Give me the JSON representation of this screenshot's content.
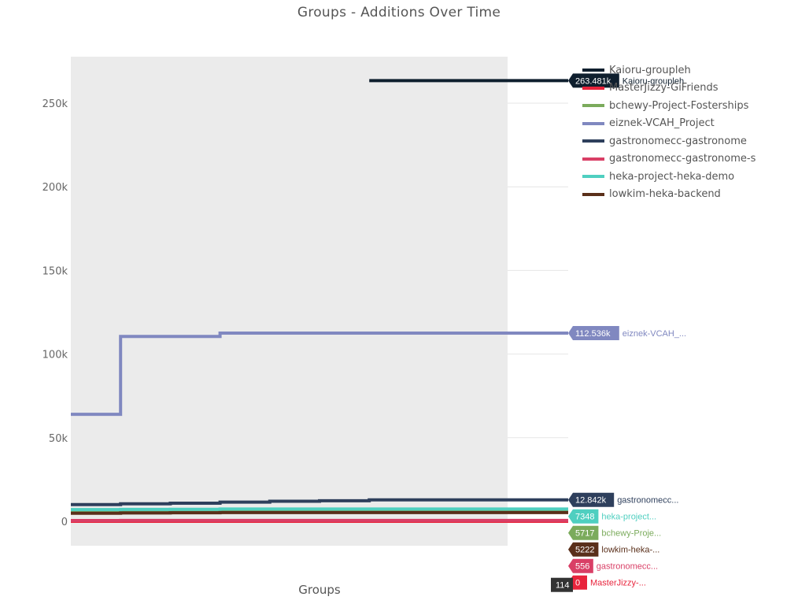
{
  "chart_data": {
    "type": "line",
    "title": "Groups - Additions Over Time",
    "xlabel": "Groups",
    "ylabel": "",
    "ylim": [
      0,
      270000
    ],
    "yticks": [
      0,
      50000,
      100000,
      150000,
      200000,
      250000
    ],
    "ytick_labels": [
      "0",
      "50k",
      "100k",
      "150k",
      "200k",
      "250k"
    ],
    "line_shape": "step",
    "x": [
      0,
      1,
      2,
      3,
      4,
      5,
      6,
      7,
      8,
      9,
      10
    ],
    "series": [
      {
        "name": "Kaioru-groupleh",
        "color": "#0f1f2e",
        "values": [
          null,
          null,
          null,
          null,
          null,
          null,
          263481,
          263481,
          263481,
          263481,
          263481
        ]
      },
      {
        "name": "MasterJizzy-GiFriends",
        "color": "#e8243c",
        "values": [
          0,
          0,
          0,
          0,
          0,
          0,
          0,
          0,
          0,
          0,
          0
        ]
      },
      {
        "name": "bchewy-Project-Fosterships",
        "color": "#7bab5c",
        "values": [
          5700,
          5700,
          5700,
          5700,
          5717,
          5717,
          5717,
          5717,
          5717,
          5717,
          5717
        ]
      },
      {
        "name": "eiznek-VCAH_Project",
        "color": "#8088c0",
        "values": [
          64000,
          110500,
          110500,
          112536,
          112536,
          112536,
          112536,
          112536,
          112536,
          112536,
          112536
        ]
      },
      {
        "name": "gastronomecc-gastronome",
        "color": "#2e3f5c",
        "values": [
          10000,
          10500,
          10800,
          11500,
          12000,
          12300,
          12842,
          12842,
          12842,
          12842,
          12842
        ]
      },
      {
        "name": "gastronomecc-gastronome-s",
        "color": "#d93f66",
        "values": [
          500,
          520,
          530,
          556,
          556,
          556,
          556,
          556,
          556,
          556,
          556
        ]
      },
      {
        "name": "heka-project-heka-demo",
        "color": "#4fcfc0",
        "values": [
          7000,
          7100,
          7200,
          7348,
          7348,
          7348,
          7348,
          7348,
          7348,
          7348,
          7348
        ]
      },
      {
        "name": "lowkim-heka-backend",
        "color": "#5a2f1a",
        "values": [
          4800,
          5000,
          5100,
          5222,
          5222,
          5222,
          5222,
          5222,
          5222,
          5222,
          5222
        ]
      }
    ],
    "hover_labels": [
      {
        "value": "263.481k",
        "name": "Kaioru-groupleh",
        "y": 263481,
        "bg": "#0f1f2e",
        "fg": "#ffffff",
        "namebg": "#ffffff",
        "namefg": "#0f1f2e"
      },
      {
        "value": "112.536k",
        "name": "eiznek-VCAH_...",
        "y": 112536,
        "bg": "#8088c0",
        "fg": "#ffffff",
        "namebg": "#ffffff",
        "namefg": "#8088c0"
      },
      {
        "value": "12.842k",
        "name": "gastronomecc...",
        "y": 12842,
        "bg": "#2e3f5c",
        "fg": "#ffffff",
        "namebg": "#ffffff",
        "namefg": "#2e3f5c"
      },
      {
        "value": "7348",
        "name": "heka-project...",
        "y": 7348,
        "bg": "#4fcfc0",
        "fg": "#ffffff",
        "namebg": "#ffffff",
        "namefg": "#4fcfc0"
      },
      {
        "value": "5717",
        "name": "bchewy-Proje...",
        "y": 5717,
        "bg": "#7bab5c",
        "fg": "#ffffff",
        "namebg": "#ffffff",
        "namefg": "#7bab5c"
      },
      {
        "value": "5222",
        "name": "lowkim-heka-...",
        "y": 5222,
        "bg": "#5a2f1a",
        "fg": "#ffffff",
        "namebg": "#ffffff",
        "namefg": "#5a2f1a"
      },
      {
        "value": "556",
        "name": "gastronomecc...",
        "y": 556,
        "bg": "#d93f66",
        "fg": "#ffffff",
        "namebg": "#ffffff",
        "namefg": "#d93f66"
      },
      {
        "value": "0",
        "name": "MasterJizzy-...",
        "y": 0,
        "bg": "#e8243c",
        "fg": "#ffffff",
        "namebg": "#ffffff",
        "namefg": "#e8243c"
      }
    ],
    "x_hover_label": "114",
    "legend_position": "top-right",
    "grid": true,
    "plot_bg": "#ebebeb"
  }
}
